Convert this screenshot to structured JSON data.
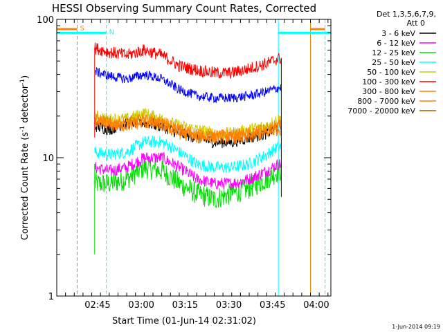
{
  "chart_data": {
    "type": "line",
    "title": "HESSI Observing Summary Count Rates, Corrected",
    "xlabel": "Start Time (01-Jun-14 02:31:02)",
    "ylabel_main": "Corrected Count Rate (s",
    "ylabel_sup1": "-1",
    "ylabel_mid": " detector",
    "ylabel_sup2": "-1",
    "ylabel_end": ")",
    "y_scale": "log",
    "ylim": [
      1,
      100
    ],
    "xlim_minutes": [
      0,
      94
    ],
    "x_ticks": [
      {
        "t": 14,
        "label": "02:45"
      },
      {
        "t": 29,
        "label": "03:00"
      },
      {
        "t": 44,
        "label": "03:15"
      },
      {
        "t": 59,
        "label": "03:30"
      },
      {
        "t": 74,
        "label": "03:45"
      },
      {
        "t": 89,
        "label": "04:00"
      }
    ],
    "y_ticks": [
      {
        "v": 1,
        "label": "1"
      },
      {
        "v": 10,
        "label": "10"
      },
      {
        "v": 100,
        "label": "100"
      }
    ],
    "legend_header": [
      "Det 1,3,5,6,7,9,",
      "Att 0"
    ],
    "legend_position": "right",
    "series": [
      {
        "name": "3 - 6 keV",
        "color": "#000000",
        "points": [
          [
            13,
            17
          ],
          [
            18,
            16
          ],
          [
            24,
            18
          ],
          [
            30,
            18
          ],
          [
            36,
            17
          ],
          [
            42,
            15
          ],
          [
            48,
            14
          ],
          [
            54,
            13
          ],
          [
            60,
            13
          ],
          [
            66,
            14
          ],
          [
            72,
            15
          ],
          [
            76,
            17
          ],
          [
            77,
            17
          ]
        ]
      },
      {
        "name": "6 - 12 keV",
        "color": "#ff00ff",
        "points": [
          [
            13,
            8.5
          ],
          [
            18,
            8
          ],
          [
            24,
            8.5
          ],
          [
            30,
            10
          ],
          [
            36,
            10
          ],
          [
            42,
            8.5
          ],
          [
            48,
            7
          ],
          [
            54,
            6.5
          ],
          [
            60,
            6.5
          ],
          [
            66,
            7
          ],
          [
            72,
            8
          ],
          [
            76,
            9
          ],
          [
            77,
            9
          ]
        ]
      },
      {
        "name": "12 - 25 keV",
        "color": "#00e000",
        "points": [
          [
            13,
            6.5
          ],
          [
            18,
            6.5
          ],
          [
            24,
            7
          ],
          [
            30,
            8.5
          ],
          [
            36,
            8
          ],
          [
            42,
            6.5
          ],
          [
            48,
            5.5
          ],
          [
            54,
            5
          ],
          [
            60,
            5.5
          ],
          [
            66,
            6
          ],
          [
            72,
            7
          ],
          [
            76,
            8
          ],
          [
            77,
            8
          ]
        ]
      },
      {
        "name": "25 - 50 keV",
        "color": "#00ffff",
        "points": [
          [
            13,
            11
          ],
          [
            18,
            10.5
          ],
          [
            24,
            11
          ],
          [
            30,
            13
          ],
          [
            36,
            13
          ],
          [
            42,
            11
          ],
          [
            48,
            9
          ],
          [
            54,
            8.5
          ],
          [
            60,
            8.5
          ],
          [
            66,
            9
          ],
          [
            72,
            10.5
          ],
          [
            76,
            12
          ],
          [
            77,
            12
          ]
        ]
      },
      {
        "name": "50 - 100 keV",
        "color": "#cccc00",
        "points": [
          [
            13,
            20
          ],
          [
            18,
            19
          ],
          [
            24,
            19
          ],
          [
            30,
            21
          ],
          [
            36,
            19
          ],
          [
            42,
            17
          ],
          [
            48,
            16
          ],
          [
            54,
            15
          ],
          [
            60,
            15
          ],
          [
            66,
            16
          ],
          [
            72,
            17
          ],
          [
            76,
            19
          ],
          [
            77,
            19
          ]
        ]
      },
      {
        "name": "100 - 300 keV",
        "color": "#ff0000",
        "points": [
          [
            13,
            62
          ],
          [
            18,
            58
          ],
          [
            24,
            55
          ],
          [
            30,
            60
          ],
          [
            36,
            55
          ],
          [
            42,
            46
          ],
          [
            48,
            43
          ],
          [
            54,
            41
          ],
          [
            60,
            41
          ],
          [
            66,
            44
          ],
          [
            72,
            48
          ],
          [
            76,
            52
          ],
          [
            77,
            52
          ]
        ]
      },
      {
        "name": "300 - 800 keV",
        "color": "#ff8000",
        "points": [
          [
            13,
            19
          ],
          [
            18,
            18
          ],
          [
            24,
            18
          ],
          [
            30,
            19
          ],
          [
            36,
            18
          ],
          [
            42,
            16
          ],
          [
            48,
            15
          ],
          [
            54,
            14.5
          ],
          [
            60,
            14.5
          ],
          [
            66,
            15
          ],
          [
            72,
            16
          ],
          [
            76,
            17
          ],
          [
            77,
            17
          ]
        ]
      },
      {
        "name": "800 - 7000 keV",
        "color": "#ff8000",
        "points": [
          [
            13,
            18
          ],
          [
            18,
            17
          ],
          [
            24,
            17
          ],
          [
            30,
            18
          ],
          [
            36,
            17
          ],
          [
            42,
            15
          ],
          [
            48,
            14
          ],
          [
            54,
            14
          ],
          [
            60,
            14
          ],
          [
            66,
            14
          ],
          [
            72,
            15
          ],
          [
            76,
            16
          ],
          [
            77,
            16
          ]
        ]
      },
      {
        "name": "7000 - 20000 keV",
        "color": "#a06000",
        "points": []
      }
    ],
    "blue_series_points": [
      [
        13,
        42
      ],
      [
        18,
        39
      ],
      [
        24,
        37
      ],
      [
        30,
        40
      ],
      [
        36,
        37
      ],
      [
        42,
        31
      ],
      [
        48,
        28
      ],
      [
        54,
        27
      ],
      [
        60,
        27
      ],
      [
        66,
        28
      ],
      [
        72,
        30
      ],
      [
        76,
        32
      ],
      [
        77,
        32
      ]
    ],
    "markers": [
      {
        "label": "S",
        "color": "#ff8000",
        "bar_start": 0,
        "bar_end": 7,
        "value": 85
      },
      {
        "label": "N",
        "color": "#00ffff",
        "bar_start": 0,
        "bar_end": 17,
        "value": 80
      }
    ],
    "vertical_lines": [
      {
        "t": 7,
        "color": "#ff8000",
        "style": "dashed"
      },
      {
        "t": 17,
        "color": "#00ffff",
        "style": "dashed"
      },
      {
        "t": 76,
        "color": "#00ffff",
        "style": "solid"
      },
      {
        "t": 87,
        "color": "#ff8000",
        "style": "solid"
      },
      {
        "t": 92,
        "color": "#00ffff",
        "style": "dashed"
      }
    ]
  },
  "footer_timestamp": "1-Jun-2014 09:19"
}
